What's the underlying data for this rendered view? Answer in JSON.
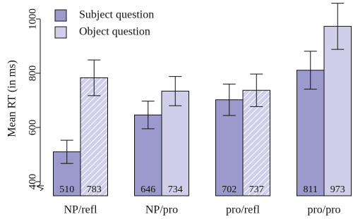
{
  "chart_data": {
    "type": "bar",
    "y_label": "Mean RT (in ms)",
    "categories": [
      "NP/refl",
      "NP/pro",
      "pro/refl",
      "pro/pro"
    ],
    "series": [
      {
        "name": "Subject question",
        "color": "#9c99cd",
        "values": [
          510,
          646,
          702,
          811
        ],
        "errors": [
          43,
          51,
          58,
          70
        ],
        "hatched": [
          false,
          false,
          false,
          false
        ]
      },
      {
        "name": "Object question",
        "color": "#d0cee9",
        "values": [
          783,
          734,
          737,
          973
        ],
        "errors": [
          66,
          54,
          60,
          85
        ],
        "hatched": [
          true,
          false,
          true,
          false
        ]
      }
    ],
    "ylim": [
      348,
      1070
    ],
    "yticks": [
      400,
      600,
      800,
      1000
    ],
    "axis_break": true
  }
}
